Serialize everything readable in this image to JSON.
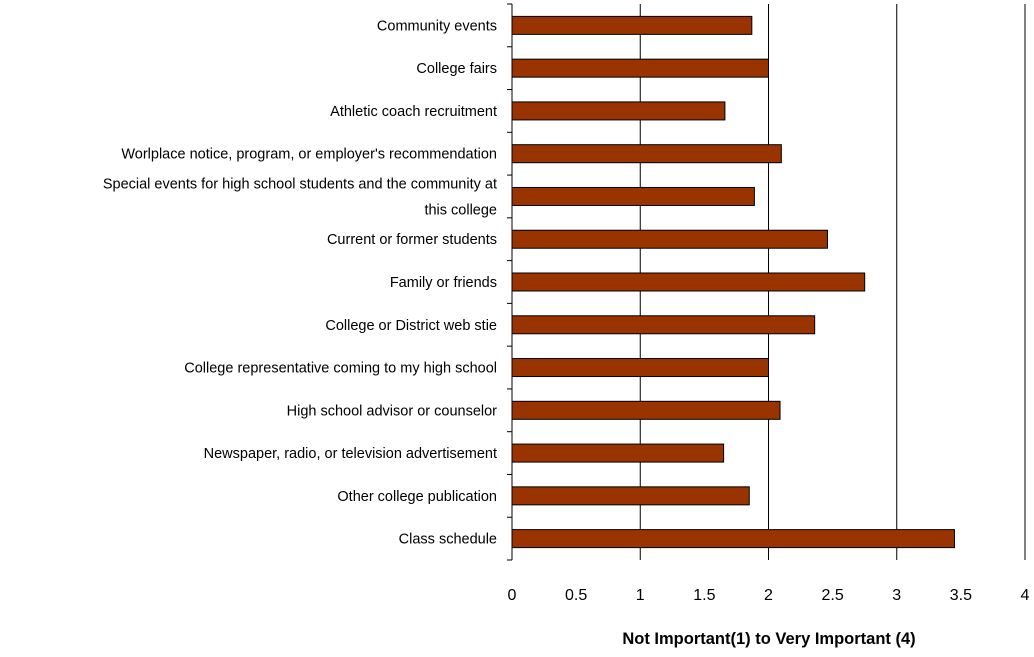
{
  "chart_data": {
    "type": "bar",
    "orientation": "horizontal",
    "categories": [
      "Community events",
      "College fairs",
      "Athletic coach recruitment",
      "Worlplace notice, program, or employer's recommendation",
      "Special events for high school students and the community at this college",
      "Current or former students",
      "Family or friends",
      "College or District web stie",
      "College representative coming to my high school",
      "High school advisor or counselor",
      "Newspaper, radio, or television advertisement",
      "Other college publication",
      "Class schedule"
    ],
    "category_label_lines": [
      [
        "Community events"
      ],
      [
        "College fairs"
      ],
      [
        "Athletic coach recruitment"
      ],
      [
        "Worlplace notice, program, or employer's recommendation"
      ],
      [
        "Special events for high school students and the community at",
        "this college"
      ],
      [
        "Current or former students"
      ],
      [
        "Family or friends"
      ],
      [
        "College or District web stie"
      ],
      [
        "College representative coming to my high school"
      ],
      [
        "High school advisor or counselor"
      ],
      [
        "Newspaper, radio, or television advertisement"
      ],
      [
        "Other college publication"
      ],
      [
        "Class schedule"
      ]
    ],
    "values": [
      1.87,
      2.0,
      1.66,
      2.1,
      1.89,
      2.46,
      2.75,
      2.36,
      2.0,
      2.09,
      1.65,
      1.85,
      3.45
    ],
    "xlim": [
      0,
      4
    ],
    "xticks": [
      "0",
      "0.5",
      "1",
      "1.5",
      "2",
      "2.5",
      "3",
      "3.5",
      "4"
    ],
    "xlabel": "Not Important(1) to Very Important (4)",
    "ylabel": "",
    "title": "",
    "grid": "vertical gridlines at whole numbers",
    "legend": "none",
    "bar_color": "#993300",
    "bar_edge_color": "#000000",
    "grid_color": "#000000"
  }
}
